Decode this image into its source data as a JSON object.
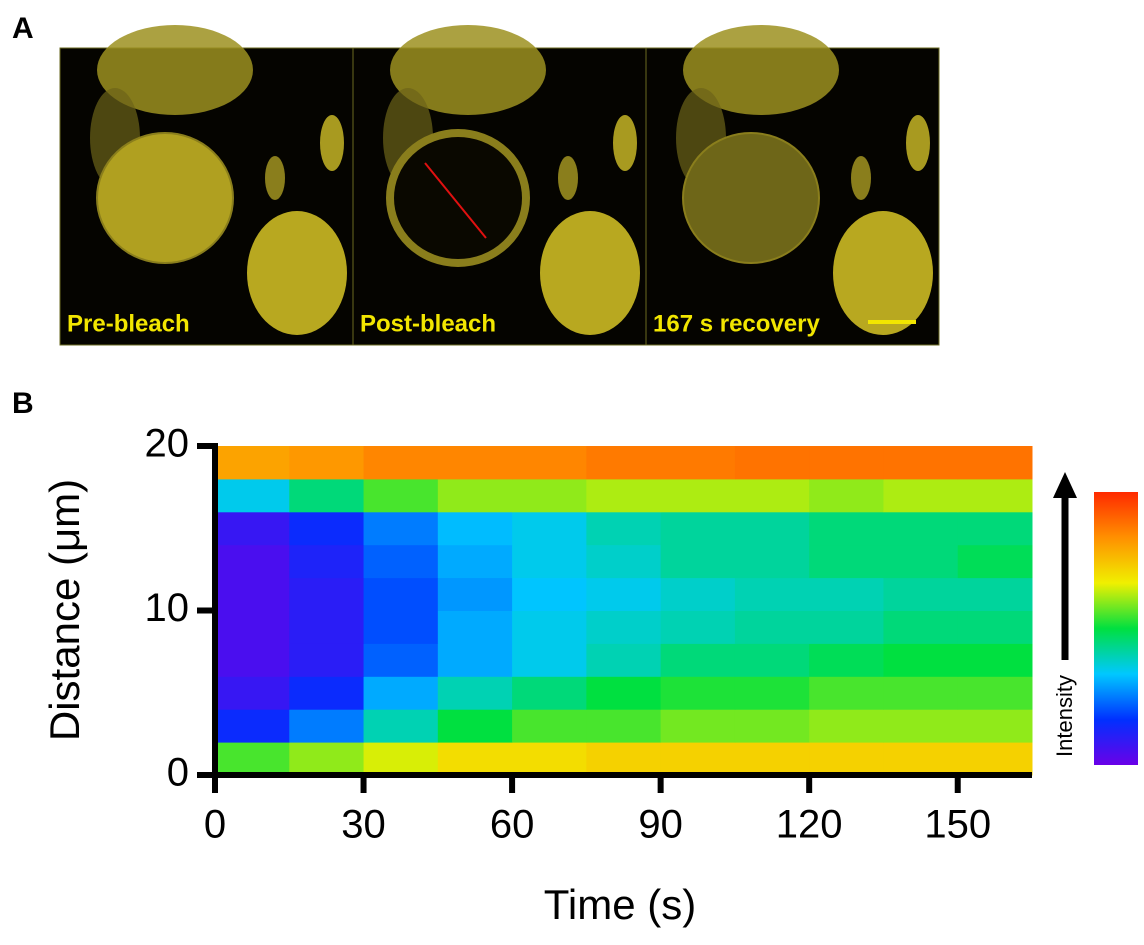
{
  "panel_a": {
    "label": "A",
    "images": [
      {
        "caption": "Pre-bleach"
      },
      {
        "caption": "Post-bleach"
      },
      {
        "caption": "167 s recovery"
      }
    ]
  },
  "chart_data": {
    "type": "heatmap",
    "label": "B",
    "x_label": "Time (s)",
    "y_label": "Distance (μm)",
    "colorbar_label": "Intensity",
    "x": [
      7.5,
      22.5,
      37.5,
      52.5,
      67.5,
      82.5,
      97.5,
      112.5,
      127.5,
      142.5,
      157.5
    ],
    "y": [
      1,
      3,
      5,
      7,
      9,
      11,
      13,
      15,
      17,
      19
    ],
    "z": [
      [
        0.55,
        0.6,
        0.65,
        0.7,
        0.7,
        0.72,
        0.72,
        0.72,
        0.72,
        0.72,
        0.72
      ],
      [
        0.15,
        0.25,
        0.4,
        0.5,
        0.55,
        0.55,
        0.58,
        0.58,
        0.6,
        0.6,
        0.6
      ],
      [
        0.08,
        0.15,
        0.3,
        0.4,
        0.45,
        0.5,
        0.52,
        0.52,
        0.55,
        0.55,
        0.55
      ],
      [
        0.05,
        0.1,
        0.22,
        0.3,
        0.35,
        0.4,
        0.45,
        0.45,
        0.48,
        0.5,
        0.5
      ],
      [
        0.05,
        0.1,
        0.2,
        0.3,
        0.35,
        0.38,
        0.4,
        0.42,
        0.42,
        0.45,
        0.45
      ],
      [
        0.05,
        0.1,
        0.2,
        0.28,
        0.33,
        0.35,
        0.38,
        0.4,
        0.4,
        0.42,
        0.42
      ],
      [
        0.05,
        0.12,
        0.22,
        0.3,
        0.35,
        0.38,
        0.42,
        0.42,
        0.45,
        0.45,
        0.48
      ],
      [
        0.08,
        0.15,
        0.25,
        0.32,
        0.35,
        0.4,
        0.42,
        0.42,
        0.45,
        0.45,
        0.45
      ],
      [
        0.35,
        0.45,
        0.55,
        0.6,
        0.6,
        0.62,
        0.62,
        0.62,
        0.6,
        0.62,
        0.62
      ],
      [
        0.8,
        0.82,
        0.85,
        0.85,
        0.85,
        0.87,
        0.87,
        0.88,
        0.88,
        0.88,
        0.88
      ]
    ],
    "xlim": [
      0,
      165
    ],
    "ylim": [
      0,
      20
    ],
    "clim": [
      0,
      1
    ],
    "xticks": [
      0,
      30,
      60,
      90,
      120,
      150
    ],
    "yticks": [
      0,
      10,
      20
    ],
    "colormap": [
      "#6a00e8",
      "#0030ff",
      "#00c8ff",
      "#00e040",
      "#f0f000",
      "#ff9000",
      "#ff2a00"
    ]
  }
}
